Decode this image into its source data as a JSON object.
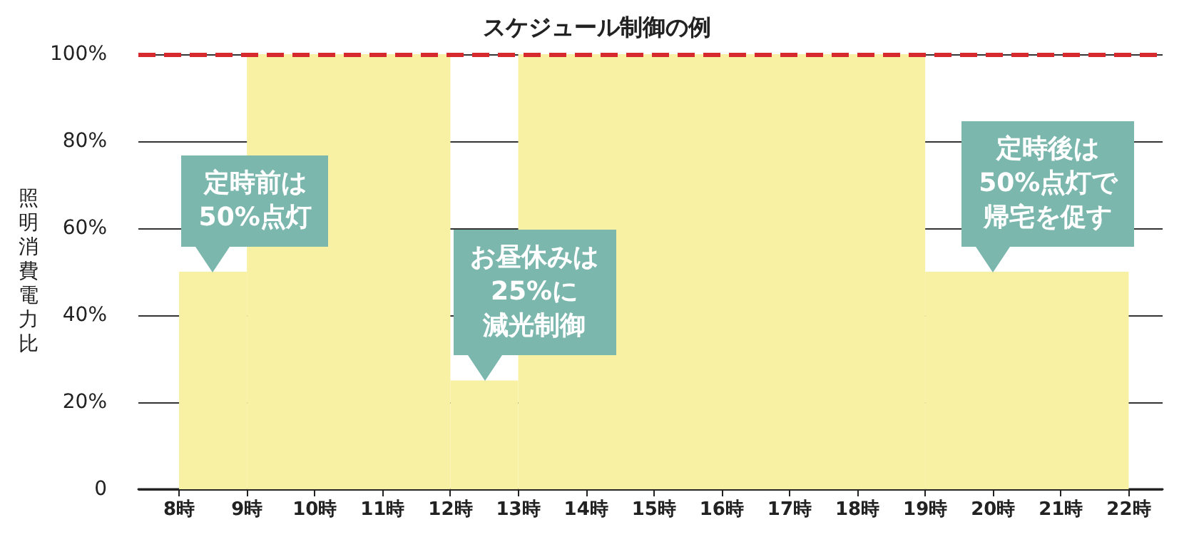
{
  "chart_data": {
    "type": "histogram",
    "title": "スケジュール制御の例",
    "ylabel": "照明消費電力比",
    "bins": [
      8,
      9,
      12,
      13,
      19,
      22
    ],
    "values": [
      50,
      100,
      25,
      100,
      50
    ],
    "color": "#f8f1a4",
    "xlim": [
      7.4,
      22.5
    ],
    "xticks": [
      {
        "value": 8,
        "label": "8時"
      },
      {
        "value": 9,
        "label": "9時"
      },
      {
        "value": 10,
        "label": "10時"
      },
      {
        "value": 11,
        "label": "11時"
      },
      {
        "value": 12,
        "label": "12時"
      },
      {
        "value": 13,
        "label": "13時"
      },
      {
        "value": 14,
        "label": "14時"
      },
      {
        "value": 15,
        "label": "15時"
      },
      {
        "value": 16,
        "label": "16時"
      },
      {
        "value": 17,
        "label": "17時"
      },
      {
        "value": 18,
        "label": "18時"
      },
      {
        "value": 19,
        "label": "19時"
      },
      {
        "value": 20,
        "label": "20時"
      },
      {
        "value": 21,
        "label": "21時"
      },
      {
        "value": 22,
        "label": "22時"
      }
    ],
    "ylim": [
      0,
      100
    ],
    "yticks": [
      0,
      {
        "value": 20,
        "label": "20%"
      },
      {
        "value": 40,
        "label": "40%"
      },
      {
        "value": 60,
        "label": "60%"
      },
      {
        "value": 80,
        "label": "80%"
      },
      {
        "value": 100,
        "label": "100%"
      }
    ],
    "grid": "y",
    "ref_lines": [
      {
        "axis": "y",
        "value": 100,
        "color": "#d62a2f",
        "line_style": "dashed"
      }
    ],
    "annotations": [
      {
        "text": "定時前は50%点灯",
        "x": 8.5,
        "y": 50
      },
      {
        "text": "お昼休みは25%に減光制御",
        "x": 12.5,
        "y": 25
      },
      {
        "text": "定時後は50%点灯で帰宅を促す",
        "x": 20,
        "y": 50
      }
    ]
  }
}
